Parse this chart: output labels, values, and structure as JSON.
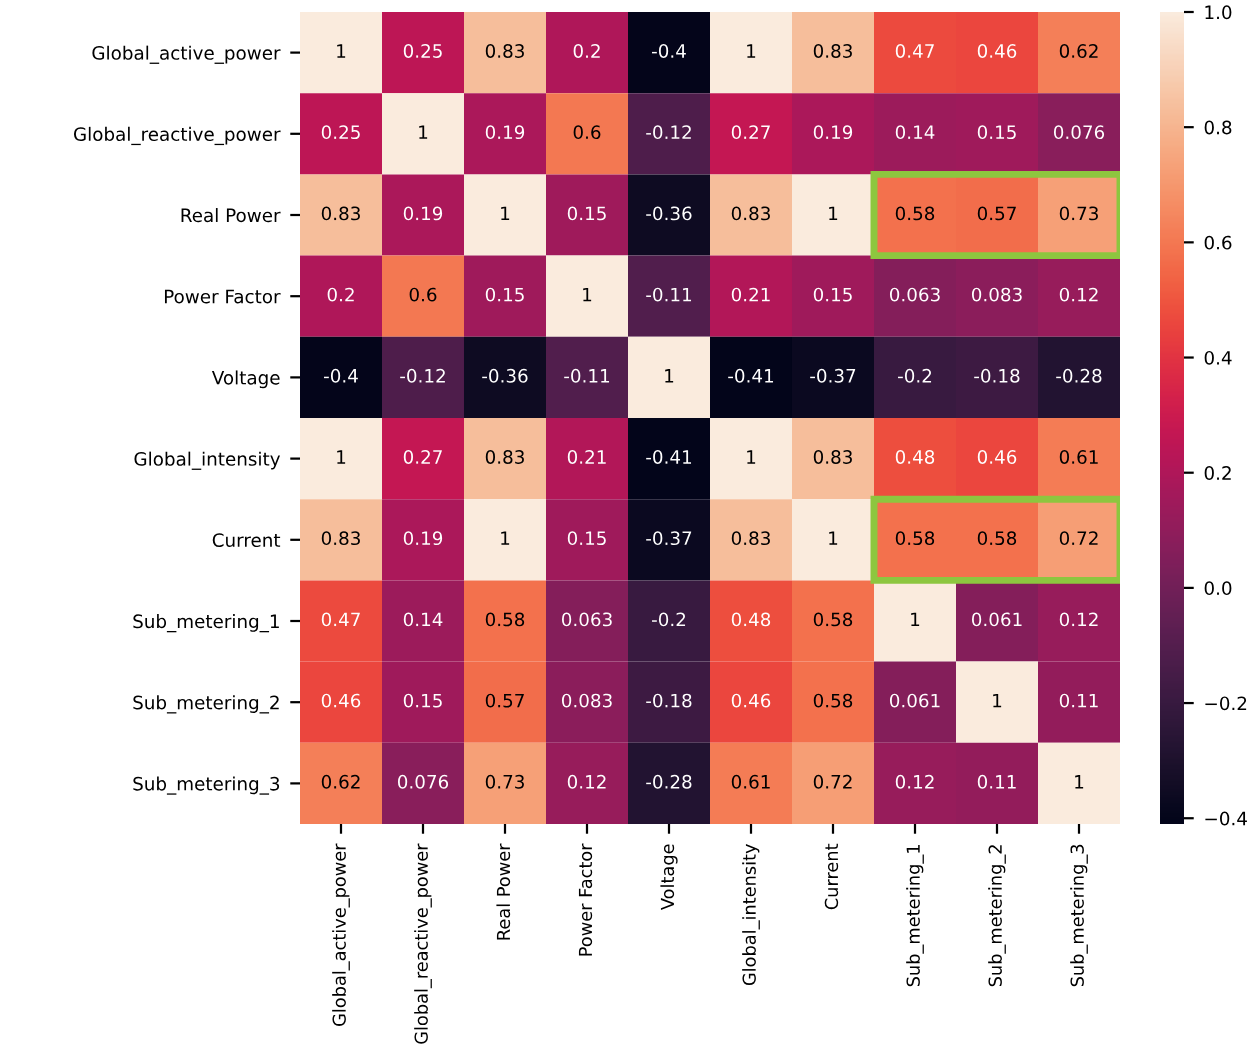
{
  "chart_data": {
    "type": "heatmap",
    "categories": [
      "Global_active_power",
      "Global_reactive_power",
      "Real Power",
      "Power Factor",
      "Voltage",
      "Global_intensity",
      "Current",
      "Sub_metering_1",
      "Sub_metering_2",
      "Sub_metering_3"
    ],
    "y_categories": [
      "Global_active_power",
      "Global_reactive_power",
      "Real Power",
      "Power Factor",
      "Voltage",
      "Global_intensity",
      "Current",
      "Sub_metering_1",
      "Sub_metering_2",
      "Sub_metering_3"
    ],
    "cells": [
      [
        1,
        0.25,
        0.83,
        0.2,
        -0.4,
        1,
        0.83,
        0.47,
        0.46,
        0.62
      ],
      [
        0.25,
        1,
        0.19,
        0.6,
        -0.12,
        0.27,
        0.19,
        0.14,
        0.15,
        0.076
      ],
      [
        0.83,
        0.19,
        1,
        0.15,
        -0.36,
        0.83,
        1,
        0.58,
        0.57,
        0.73
      ],
      [
        0.2,
        0.6,
        0.15,
        1,
        -0.11,
        0.21,
        0.15,
        0.063,
        0.083,
        0.12
      ],
      [
        -0.4,
        -0.12,
        -0.36,
        -0.11,
        1,
        -0.41,
        -0.37,
        -0.2,
        -0.18,
        -0.28
      ],
      [
        1,
        0.27,
        0.83,
        0.21,
        -0.41,
        1,
        0.83,
        0.48,
        0.46,
        0.61
      ],
      [
        0.83,
        0.19,
        1,
        0.15,
        -0.37,
        0.83,
        1,
        0.58,
        0.58,
        0.72
      ],
      [
        0.47,
        0.14,
        0.58,
        0.063,
        -0.2,
        0.48,
        0.58,
        1,
        0.061,
        0.12
      ],
      [
        0.46,
        0.15,
        0.57,
        0.083,
        -0.18,
        0.46,
        0.58,
        0.061,
        1,
        0.11
      ],
      [
        0.62,
        0.076,
        0.73,
        0.12,
        -0.28,
        0.61,
        0.72,
        0.12,
        0.11,
        1
      ]
    ],
    "data_labels": true,
    "clim": [
      -0.41,
      1
    ],
    "cticks": [
      {
        "value": -0.4,
        "label": "−0.4"
      },
      {
        "value": -0.2,
        "label": "−0.2"
      },
      {
        "value": 0,
        "label": "0.0"
      },
      {
        "value": 0.2,
        "label": "0.2"
      },
      {
        "value": 0.4,
        "label": "0.4"
      },
      {
        "value": 0.6,
        "label": "0.6"
      },
      {
        "value": 0.8,
        "label": "0.8"
      },
      {
        "value": 1,
        "label": "1.0"
      }
    ]
  }
}
